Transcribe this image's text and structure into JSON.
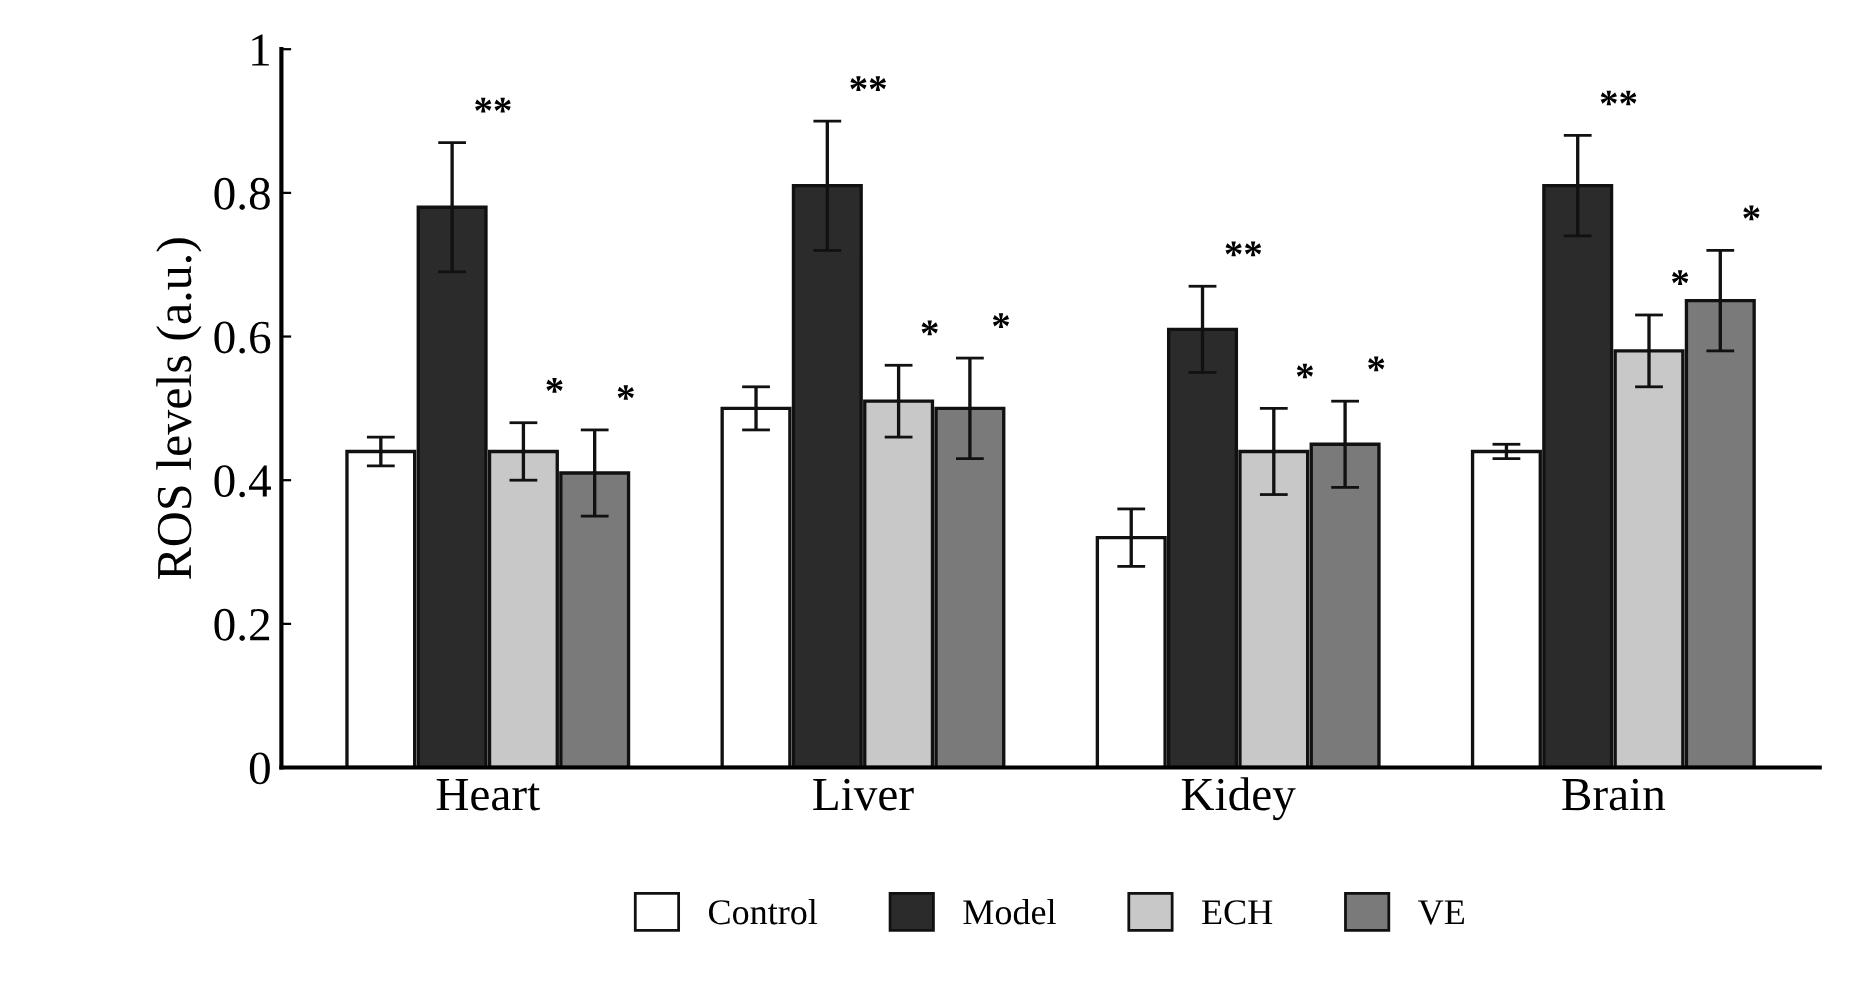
{
  "chart_data": {
    "type": "bar",
    "ylabel": "ROS levels (a.u.)",
    "categories": [
      "Heart",
      "Liver",
      "Kidey",
      "Brain"
    ],
    "series": [
      {
        "name": "Control",
        "color": "#ffffff",
        "values": [
          0.44,
          0.5,
          0.32,
          0.44
        ],
        "errors": [
          0.02,
          0.03,
          0.04,
          0.01
        ]
      },
      {
        "name": "Model",
        "color": "#2b2b2b",
        "values": [
          0.78,
          0.81,
          0.61,
          0.81
        ],
        "errors": [
          0.09,
          0.09,
          0.06,
          0.07
        ]
      },
      {
        "name": "ECH",
        "color": "#c8c8c8",
        "values": [
          0.44,
          0.51,
          0.44,
          0.58
        ],
        "errors": [
          0.04,
          0.05,
          0.06,
          0.05
        ]
      },
      {
        "name": "VE",
        "color": "#7a7a7a",
        "values": [
          0.41,
          0.5,
          0.45,
          0.65
        ],
        "errors": [
          0.06,
          0.07,
          0.06,
          0.07
        ]
      }
    ],
    "ylim": [
      0,
      1
    ],
    "yticks": [
      0,
      0.2,
      0.4,
      0.6,
      0.8,
      1
    ],
    "grid": false,
    "legend": "bottom",
    "annotations": [
      "**",
      "*",
      "*",
      "**",
      "*",
      "*",
      "**",
      "*",
      "*",
      "**",
      "*",
      "*"
    ]
  }
}
